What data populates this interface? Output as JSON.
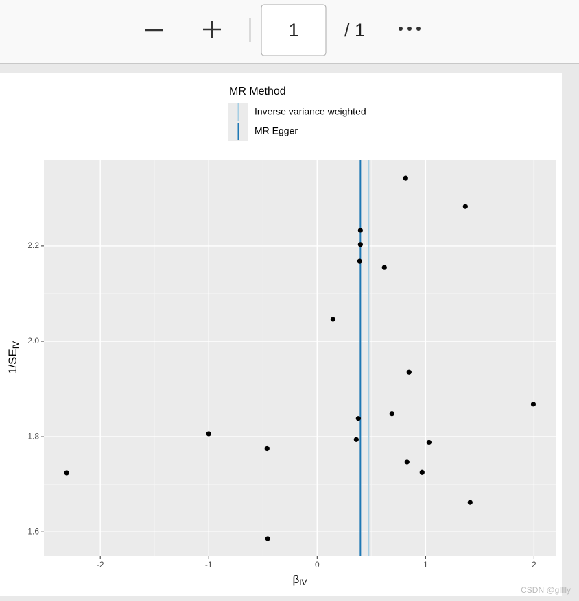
{
  "toolbar": {
    "page_input": "1",
    "page_total": "/ 1"
  },
  "watermark": "CSDN @glllly",
  "chart_data": {
    "type": "scatter",
    "x_label": {
      "main": "β",
      "sub": "IV"
    },
    "y_label": {
      "main": "1/SE",
      "sub": "IV"
    },
    "legend_title": "MR Method",
    "x": [
      0.816,
      1.367,
      0.399,
      0.399,
      0.392,
      0.62,
      0.146,
      0.848,
      1.994,
      0.69,
      0.38,
      -1.0,
      0.361,
      1.032,
      -0.462,
      0.829,
      -2.31,
      0.968,
      1.411,
      -0.456
    ],
    "values": [
      2.342,
      2.283,
      2.233,
      2.203,
      2.168,
      2.155,
      2.046,
      1.935,
      1.868,
      1.848,
      1.838,
      1.806,
      1.794,
      1.788,
      1.775,
      1.747,
      1.724,
      1.725,
      1.662,
      1.586
    ],
    "color": "#000000",
    "lines": [
      {
        "name": "Inverse variance weighted",
        "color": "#a6cee3",
        "x": 0.475
      },
      {
        "name": "MR Egger",
        "color": "#1f78b4",
        "x": 0.399
      }
    ],
    "xlim": [
      -2.52,
      2.2
    ],
    "ylim": [
      1.55,
      2.381
    ],
    "xticks": [
      -2,
      -1,
      0,
      1,
      2
    ],
    "yticks": [
      1.6,
      1.8,
      {
        "value": 2,
        "label": "2.0"
      },
      2.2
    ],
    "grid": true,
    "minor_grid": true
  }
}
